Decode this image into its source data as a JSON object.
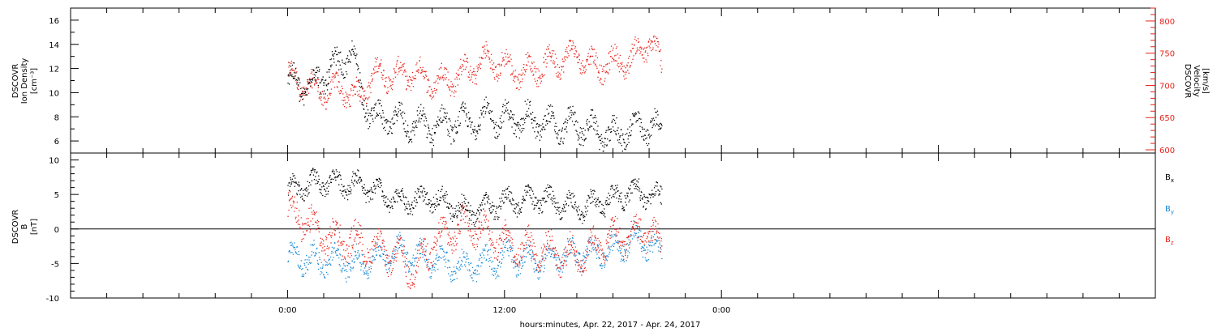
{
  "colors": {
    "black": "#000000",
    "red": "#e8231b",
    "blue": "#1a8ad4"
  },
  "footer": {
    "xlabel": "hours:minutes, Apr. 22, 2017 - Apr. 24, 2017"
  },
  "chart_data": [
    {
      "type": "scatter",
      "panel": "top",
      "ylabel_left": [
        "DSCOVR",
        "Ion Density",
        "[cm⁻³]"
      ],
      "ylabel_right": [
        "DSCOVR",
        "Velocity",
        "[km/s]"
      ],
      "x_axis": {
        "unit": "hours from Apr. 22 00:00",
        "range": [
          -12,
          48
        ],
        "tick_labels": [
          {
            "x": 0,
            "label": "0:00"
          },
          {
            "x": 12,
            "label": "12:00"
          },
          {
            "x": 24,
            "label": "0:00"
          }
        ]
      },
      "left_axis": {
        "range": [
          5,
          17
        ],
        "ticks": [
          6,
          8,
          10,
          12,
          14,
          16
        ]
      },
      "right_axis": {
        "range": [
          595,
          820
        ],
        "ticks": [
          600,
          650,
          700,
          750,
          800
        ]
      },
      "series": [
        {
          "color": "#000000",
          "axis": "left",
          "trend_x": [
            0,
            1,
            2,
            3,
            3.5,
            4,
            4.5,
            5,
            6,
            7,
            8,
            9,
            10,
            11,
            12,
            13,
            14,
            15,
            16,
            17,
            18,
            19,
            20,
            20.7
          ],
          "trend_y": [
            11,
            10.5,
            11.5,
            12.5,
            13.5,
            10.5,
            8.5,
            7.8,
            7.8,
            7.4,
            7.2,
            7.5,
            7.6,
            8.0,
            7.8,
            7.8,
            7.6,
            7.2,
            7.4,
            6.8,
            6.5,
            7.0,
            7.3,
            6.8
          ]
        },
        {
          "color": "#e8231b",
          "axis": "right",
          "trend_x": [
            0,
            1,
            2,
            3,
            4,
            4.5,
            5,
            6,
            7,
            8,
            9,
            10,
            11,
            12,
            13,
            14,
            15,
            16,
            17,
            18,
            19,
            20,
            20.7
          ],
          "trend_y": [
            715,
            700,
            690,
            695,
            680,
            710,
            720,
            715,
            720,
            705,
            710,
            725,
            740,
            730,
            720,
            730,
            740,
            750,
            730,
            735,
            740,
            770,
            730
          ]
        }
      ]
    },
    {
      "type": "scatter",
      "panel": "bottom",
      "ylabel_left": [
        "DSCOVR",
        "B",
        "[nT]"
      ],
      "x_axis": {
        "unit": "hours from Apr. 22 00:00",
        "range": [
          -12,
          48
        ]
      },
      "left_axis": {
        "range": [
          -10,
          11
        ],
        "ticks": [
          -10,
          -5,
          0,
          5,
          10
        ]
      },
      "legend": [
        {
          "name": "Bx",
          "base": "B",
          "sub": "x",
          "color": "#000000"
        },
        {
          "name": "By",
          "base": "B",
          "sub": "y",
          "color": "#1a8ad4"
        },
        {
          "name": "Bz",
          "base": "B",
          "sub": "z",
          "color": "#e8231b"
        }
      ],
      "legend_position": "right",
      "series": [
        {
          "name": "Bx",
          "color": "#000000",
          "trend_x": [
            0,
            2,
            4,
            6,
            8,
            10,
            12,
            14,
            16,
            18,
            19,
            20,
            20.7
          ],
          "trend_y": [
            5.5,
            7,
            6.5,
            4,
            4.5,
            2.5,
            4,
            4.5,
            3,
            4.5,
            5.5,
            5,
            4.5
          ]
        },
        {
          "name": "By",
          "color": "#1a8ad4",
          "trend_x": [
            0,
            2,
            4,
            6,
            8,
            10,
            12,
            14,
            16,
            18,
            19,
            20,
            20.7
          ],
          "trend_y": [
            -4,
            -4.5,
            -5,
            -3,
            -4.5,
            -5.5,
            -4,
            -4.5,
            -3.5,
            -3,
            -1.5,
            -2,
            -4
          ]
        },
        {
          "name": "Bz",
          "color": "#e8231b",
          "trend_x": [
            0,
            2,
            4,
            6,
            7,
            8,
            10,
            12,
            14,
            16,
            18,
            19,
            20,
            20.7
          ],
          "trend_y": [
            3,
            -1,
            -2,
            -4,
            -6,
            -2,
            1,
            -2,
            -3,
            -4,
            -1,
            -1,
            0,
            -3
          ]
        }
      ]
    }
  ]
}
